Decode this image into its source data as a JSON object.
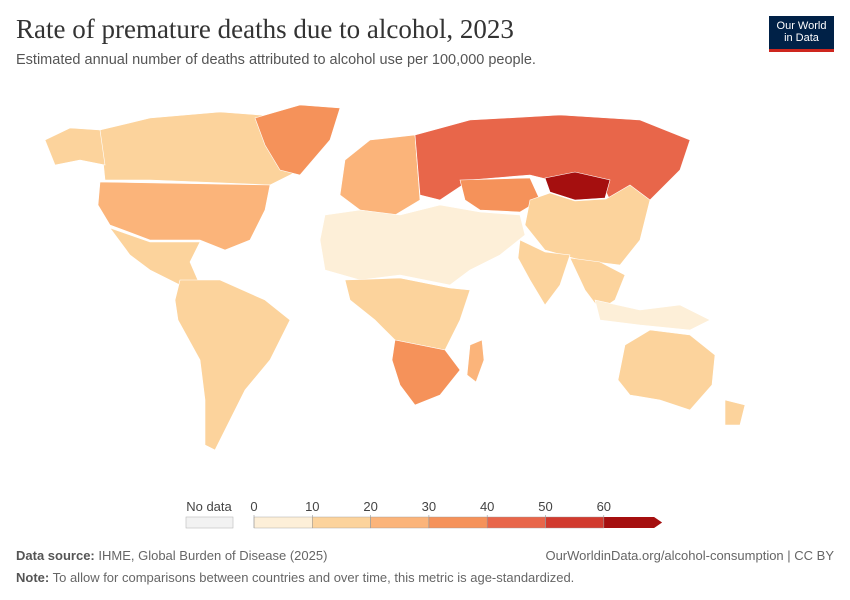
{
  "header": {
    "title": "Rate of premature deaths due to alcohol, 2023",
    "subtitle": "Estimated annual number of deaths attributed to alcohol use per 100,000 people.",
    "logo": [
      "Our World",
      "in Data"
    ]
  },
  "chart_data": {
    "type": "choropleth",
    "values": [
      12,
      14,
      22,
      38,
      15,
      15,
      25,
      45,
      65,
      38,
      15,
      4,
      12,
      18,
      6,
      18,
      38,
      22,
      15,
      15
    ],
    "legend": {
      "no_data": "No data",
      "bins": [
        0,
        10,
        20,
        30,
        40,
        50,
        60
      ],
      "colors": [
        "#fdefd8",
        "#fcd39c",
        "#fbb47a",
        "#f5925a",
        "#e8664a",
        "#d13a2e",
        "#a50f0f"
      ]
    }
  },
  "footer": {
    "source_label": "Data source:",
    "source": "IHME, Global Burden of Disease (2025)",
    "url": "OurWorldinData.org/alcohol-consumption | CC BY",
    "note_label": "Note:",
    "note": "To allow for comparisons between countries and over time, this metric is age-standardized."
  }
}
